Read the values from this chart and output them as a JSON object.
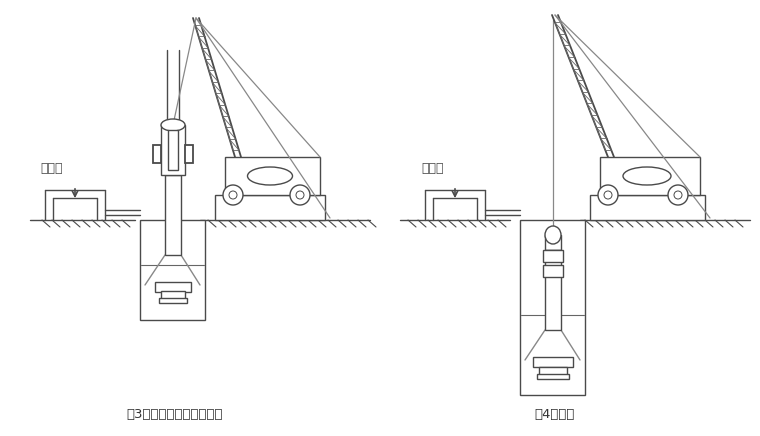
{
  "bg_color": "#ffffff",
  "line_color": "#4a4a4a",
  "label1": "（3）钻机就位、泥浆制备",
  "label2": "（4）钻进",
  "mud_pool_label1": "泥浆池",
  "mud_pool_label2": "泥浆池",
  "figsize": [
    7.6,
    4.36
  ],
  "dpi": 100
}
